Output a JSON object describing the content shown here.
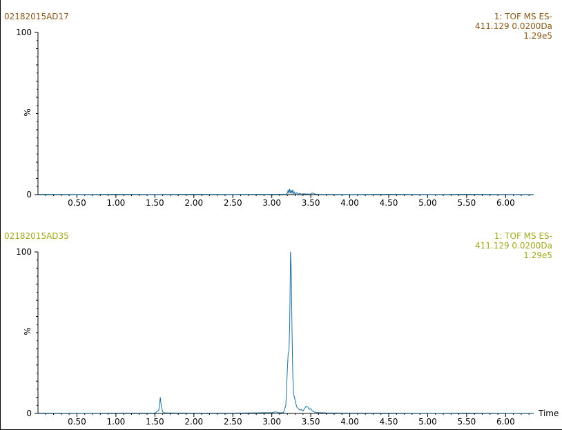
{
  "chart_data": [
    {
      "type": "line",
      "sample_name": "02182015AD17",
      "header_right": [
        "1: TOF MS ES-",
        "411.129 0.0200Da",
        "1.29e5"
      ],
      "header_color": "#8a5a1a",
      "trace_color": "#1a6e9e",
      "ylabel": "%",
      "y_ticks": [
        "100",
        "0"
      ],
      "ylim": [
        0,
        100
      ],
      "xlim": [
        0.0,
        6.36
      ],
      "x_ticks": [
        "0.50",
        "1.00",
        "1.50",
        "2.00",
        "2.50",
        "3.00",
        "3.50",
        "4.00",
        "4.50",
        "5.00",
        "5.50",
        "6.00"
      ],
      "xlabel": "",
      "series": [
        {
          "x": [
            0.0,
            0.5,
            1.0,
            1.5,
            2.0,
            2.5,
            3.0,
            3.18,
            3.2,
            3.21,
            3.22,
            3.23,
            3.24,
            3.25,
            3.26,
            3.27,
            3.28,
            3.29,
            3.3,
            3.32,
            3.34,
            3.36,
            3.38,
            3.4,
            3.45,
            3.5,
            3.52,
            3.55,
            3.6,
            4.0,
            4.5,
            5.0,
            5.5,
            6.0,
            6.36
          ],
          "y": [
            0.2,
            0.1,
            0.2,
            0.1,
            0.2,
            0.1,
            0.2,
            0.2,
            1.0,
            3.0,
            0.6,
            3.5,
            0.8,
            2.8,
            1.0,
            3.0,
            0.5,
            1.5,
            0.4,
            1.2,
            0.3,
            0.8,
            0.2,
            0.5,
            0.4,
            0.3,
            1.0,
            0.4,
            0.2,
            0.1,
            0.2,
            0.1,
            0.2,
            0.1,
            0.1
          ]
        }
      ]
    },
    {
      "type": "line",
      "sample_name": "02182015AD35",
      "header_right": [
        "1: TOF MS ES-",
        "411.129 0.0200Da",
        "1.29e5"
      ],
      "header_color": "#a0a81a",
      "trace_color": "#1a6e9e",
      "ylabel": "%",
      "y_ticks": [
        "100",
        "0"
      ],
      "ylim": [
        0,
        100
      ],
      "xlim": [
        0.0,
        6.36
      ],
      "x_ticks": [
        "0.50",
        "1.00",
        "1.50",
        "2.00",
        "2.50",
        "3.00",
        "3.50",
        "4.00",
        "4.50",
        "5.00",
        "5.50",
        "6.00"
      ],
      "xlabel": "Time",
      "series": [
        {
          "x": [
            0.0,
            0.5,
            1.0,
            1.5,
            1.55,
            1.57,
            1.58,
            1.6,
            1.63,
            2.0,
            2.5,
            3.0,
            3.05,
            3.1,
            3.15,
            3.18,
            3.2,
            3.21,
            3.22,
            3.23,
            3.24,
            3.25,
            3.26,
            3.27,
            3.28,
            3.3,
            3.32,
            3.34,
            3.36,
            3.38,
            3.4,
            3.42,
            3.44,
            3.46,
            3.48,
            3.5,
            3.52,
            3.55,
            3.6,
            3.7,
            4.0,
            4.5,
            5.0,
            5.5,
            6.0,
            6.36
          ],
          "y": [
            0.2,
            0.1,
            0.2,
            0.2,
            2.0,
            10.0,
            5.0,
            1.0,
            0.3,
            0.2,
            0.2,
            0.5,
            1.0,
            0.4,
            0.5,
            5.0,
            28.0,
            37.0,
            38.0,
            55.0,
            100.0,
            88.0,
            50.0,
            22.0,
            12.0,
            8.0,
            4.0,
            3.0,
            2.0,
            2.5,
            1.5,
            3.0,
            4.5,
            4.0,
            2.5,
            3.0,
            1.5,
            0.8,
            0.5,
            0.3,
            0.2,
            0.2,
            0.1,
            0.2,
            0.1,
            0.1
          ]
        }
      ]
    }
  ]
}
